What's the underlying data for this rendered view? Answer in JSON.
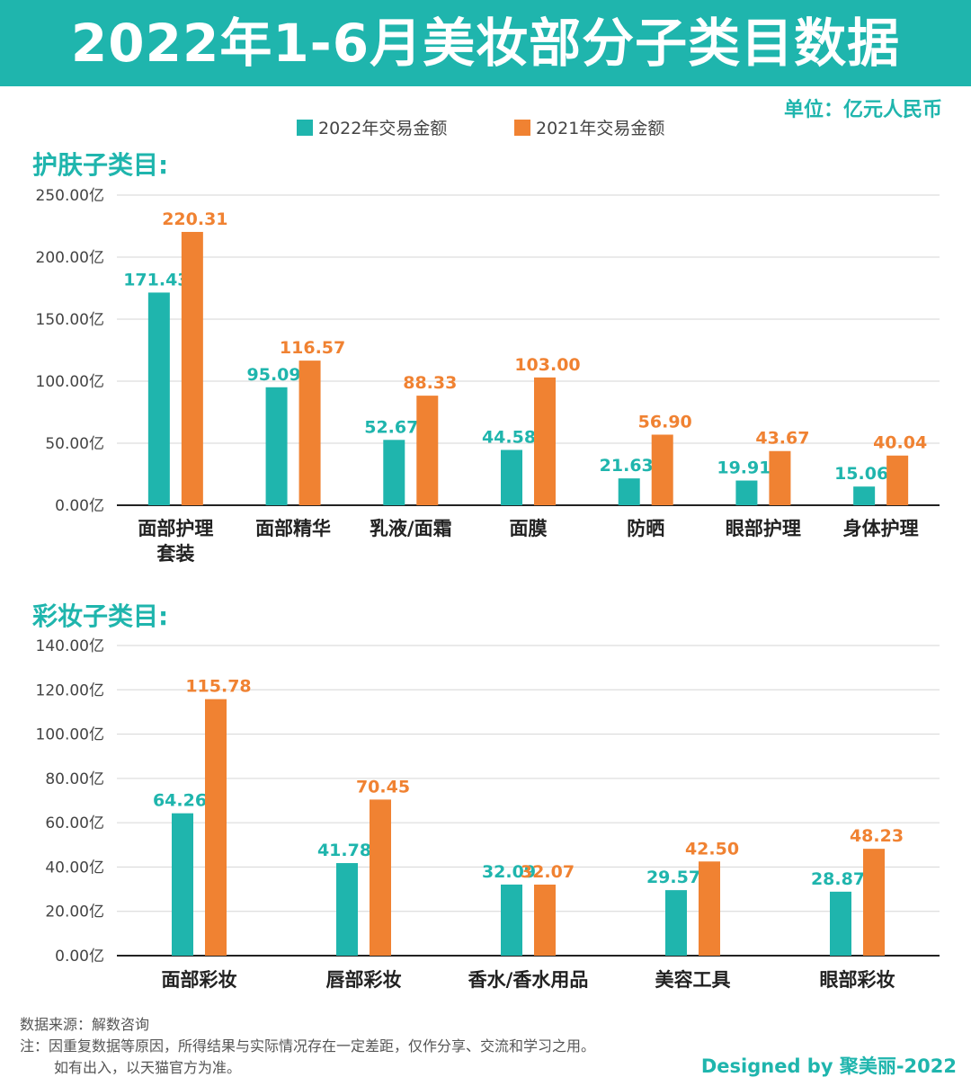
{
  "title": "2022年1-6月美妆部分子类目数据",
  "unit_text": "单位：亿元人民币",
  "legend": [
    {
      "label": "2022年交易金额",
      "color": "#1fb5ad"
    },
    {
      "label": "2021年交易金额",
      "color": "#f08232"
    }
  ],
  "chart_data": [
    {
      "type": "bar",
      "title": "护肤子类目:",
      "categories": [
        "面部护理\n套装",
        "面部精华",
        "乳液/面霜",
        "面膜",
        "防晒",
        "眼部护理",
        "身体护理"
      ],
      "series": [
        {
          "name": "2022年交易金额",
          "values": [
            171.43,
            95.09,
            52.67,
            44.58,
            21.63,
            19.91,
            15.06
          ]
        },
        {
          "name": "2021年交易金额",
          "values": [
            220.31,
            116.57,
            88.33,
            103.0,
            56.9,
            43.67,
            40.04
          ]
        }
      ],
      "value_labels": [
        [
          "171.43",
          "95.09",
          "52.67",
          "44.58",
          "21.63",
          "19.91",
          "15.06"
        ],
        [
          "220.31",
          "116.57",
          "88.33",
          "103.00",
          "56.90",
          "43.67",
          "40.04"
        ]
      ],
      "ylim": [
        0,
        250
      ],
      "yticks": [
        0,
        50,
        100,
        150,
        200,
        250
      ],
      "ytick_labels": [
        "0.00亿",
        "50.00亿",
        "100.00亿",
        "150.00亿",
        "200.00亿",
        "250.00亿"
      ],
      "grid": true
    },
    {
      "type": "bar",
      "title": "彩妆子类目:",
      "categories": [
        "面部彩妆",
        "唇部彩妆",
        "香水/香水用品",
        "美容工具",
        "眼部彩妆"
      ],
      "series": [
        {
          "name": "2022年交易金额",
          "values": [
            64.26,
            41.78,
            32.09,
            29.57,
            28.87
          ]
        },
        {
          "name": "2021年交易金额",
          "values": [
            115.78,
            70.45,
            32.07,
            42.5,
            48.23
          ]
        }
      ],
      "value_labels": [
        [
          "64.26",
          "41.78",
          "32.09",
          "29.57",
          "28.87"
        ],
        [
          "115.78",
          "70.45",
          "32.07",
          "42.50",
          "48.23"
        ]
      ],
      "ylim": [
        0,
        140
      ],
      "yticks": [
        0,
        20,
        40,
        60,
        80,
        100,
        120,
        140
      ],
      "ytick_labels": [
        "0.00亿",
        "20.00亿",
        "40.00亿",
        "60.00亿",
        "80.00亿",
        "100.00亿",
        "120.00亿",
        "140.00亿"
      ],
      "grid": true
    }
  ],
  "footer": {
    "source": "数据来源：解数咨询",
    "note1": "注：因重复数据等原因，所得结果与实际情况存在一定差距，仅作分享、交流和学习之用。",
    "note2": "如有出入，以天猫官方为准。"
  },
  "credit": "Designed by 聚美丽-2022"
}
